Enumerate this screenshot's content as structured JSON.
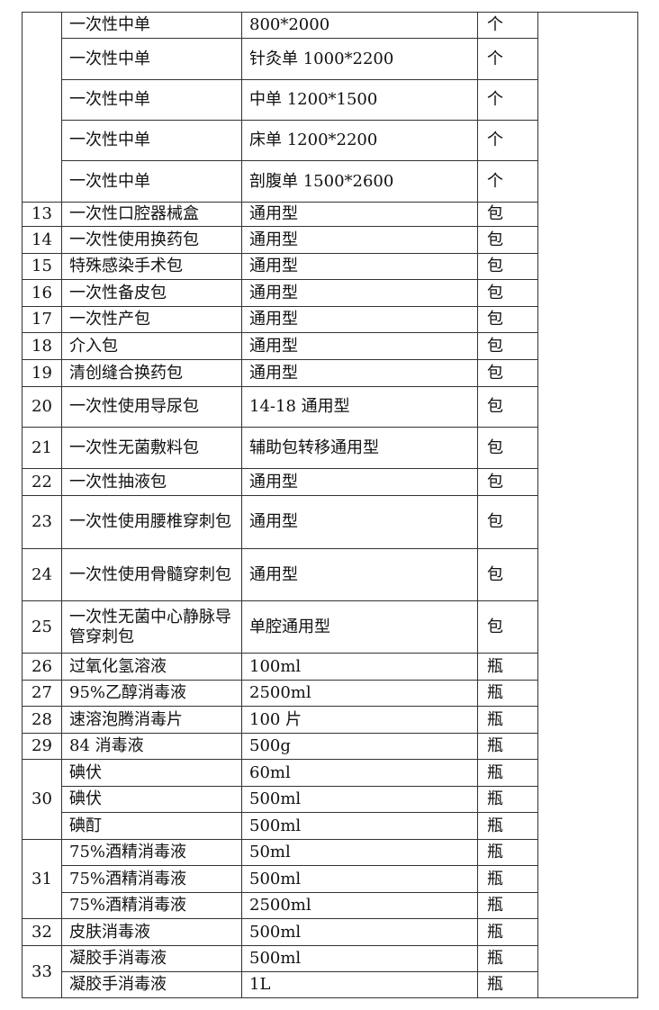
{
  "table": {
    "groups": [
      {
        "no": "",
        "items": [
          {
            "name": "一次性中单",
            "spec": "800*2000",
            "unit": "个"
          },
          {
            "name": "一次性中单",
            "spec": "针灸单 1000*2200",
            "unit": "个"
          },
          {
            "name": "一次性中单",
            "spec": "中单 1200*1500",
            "unit": "个"
          },
          {
            "name": "一次性中单",
            "spec": "床单 1200*2200",
            "unit": "个"
          },
          {
            "name": "一次性中单",
            "spec": "剖腹单 1500*2600",
            "unit": "个"
          }
        ]
      },
      {
        "no": "13",
        "items": [
          {
            "name": "一次性口腔器械盒",
            "spec": "通用型",
            "unit": "包"
          }
        ]
      },
      {
        "no": "14",
        "items": [
          {
            "name": "一次性使用换药包",
            "spec": "通用型",
            "unit": "包"
          }
        ]
      },
      {
        "no": "15",
        "items": [
          {
            "name": "特殊感染手术包",
            "spec": "通用型",
            "unit": "包"
          }
        ]
      },
      {
        "no": "16",
        "items": [
          {
            "name": "一次性备皮包",
            "spec": "通用型",
            "unit": "包"
          }
        ]
      },
      {
        "no": "17",
        "items": [
          {
            "name": "一次性产包",
            "spec": "通用型",
            "unit": "包"
          }
        ]
      },
      {
        "no": "18",
        "items": [
          {
            "name": "介入包",
            "spec": "通用型",
            "unit": "包"
          }
        ]
      },
      {
        "no": "19",
        "items": [
          {
            "name": "清创缝合换药包",
            "spec": "通用型",
            "unit": "包"
          }
        ]
      },
      {
        "no": "20",
        "items": [
          {
            "name": "一次性使用导尿包",
            "spec": "14-18 通用型",
            "unit": "包"
          }
        ]
      },
      {
        "no": "21",
        "items": [
          {
            "name": "一次性无菌敷料包",
            "spec": "辅助包转移通用型",
            "unit": "包"
          }
        ]
      },
      {
        "no": "22",
        "items": [
          {
            "name": "一次性抽液包",
            "spec": "通用型",
            "unit": "包"
          }
        ]
      },
      {
        "no": "23",
        "items": [
          {
            "name": "一次性使用腰椎穿刺包",
            "spec": "通用型",
            "unit": "包"
          }
        ]
      },
      {
        "no": "24",
        "items": [
          {
            "name": "一次性使用骨髓穿刺包",
            "spec": "通用型",
            "unit": "包"
          }
        ]
      },
      {
        "no": "25",
        "items": [
          {
            "name": "一次性无菌中心静脉导管穿刺包",
            "spec": "单腔通用型",
            "unit": "包"
          }
        ]
      },
      {
        "no": "26",
        "items": [
          {
            "name": "过氧化氢溶液",
            "spec": "100ml",
            "unit": "瓶"
          }
        ]
      },
      {
        "no": "27",
        "items": [
          {
            "name": "95%乙醇消毒液",
            "spec": "2500ml",
            "unit": "瓶"
          }
        ]
      },
      {
        "no": "28",
        "items": [
          {
            "name": "速溶泡腾消毒片",
            "spec": "100 片",
            "unit": "瓶"
          }
        ]
      },
      {
        "no": "29",
        "items": [
          {
            "name": "84 消毒液",
            "spec": "500g",
            "unit": "瓶"
          }
        ]
      },
      {
        "no": "30",
        "items": [
          {
            "name": "碘伏",
            "spec": "60ml",
            "unit": "瓶"
          },
          {
            "name": "碘伏",
            "spec": "500ml",
            "unit": "瓶"
          },
          {
            "name": "碘酊",
            "spec": "500ml",
            "unit": "瓶"
          }
        ]
      },
      {
        "no": "31",
        "items": [
          {
            "name": "75%酒精消毒液",
            "spec": "50ml",
            "unit": "瓶"
          },
          {
            "name": "75%酒精消毒液",
            "spec": "500ml",
            "unit": "瓶"
          },
          {
            "name": "75%酒精消毒液",
            "spec": "2500ml",
            "unit": "瓶"
          }
        ]
      },
      {
        "no": "32",
        "items": [
          {
            "name": "皮肤消毒液",
            "spec": "500ml",
            "unit": "瓶"
          }
        ]
      },
      {
        "no": "33",
        "items": [
          {
            "name": "凝胶手消毒液",
            "spec": "500ml",
            "unit": "瓶"
          },
          {
            "name": "凝胶手消毒液",
            "spec": "1L",
            "unit": "瓶"
          }
        ]
      }
    ]
  }
}
